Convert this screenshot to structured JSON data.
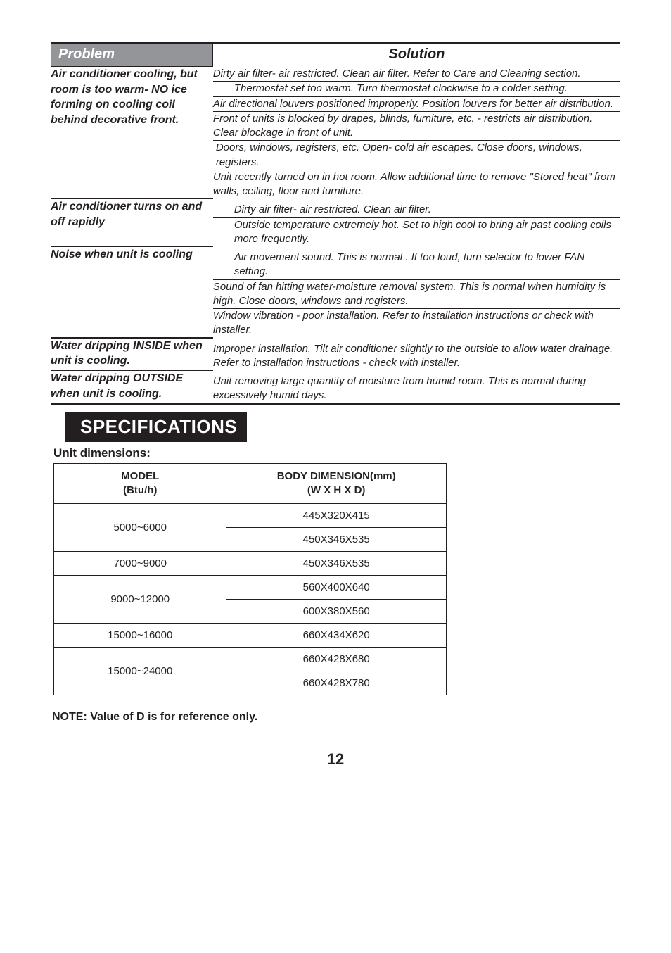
{
  "troubleshoot": {
    "headers": {
      "problem": "Problem",
      "solution": "Solution"
    },
    "groups": [
      {
        "problem": "Air conditioner cooling, but room is too warm- NO ice forming on cooling coil behind decorative front.",
        "solutions": [
          "Dirty air filter- air restricted. Clean air filter. Refer to Care and Cleaning section.",
          "Thermostat set too warm. Turn thermostat clockwise to a colder setting.",
          "Air directional louvers positioned improperly. Position louvers for better air distribution.",
          "Front of units is blocked by drapes, blinds, furniture, etc. - restricts air distribution. Clear blockage in front of unit.",
          "Doors, windows, registers, etc. Open- cold air escapes. Close doors, windows, registers.",
          "Unit recently turned on in hot room. Allow additional time to remove \"Stored heat\" from walls, ceiling, floor and furniture."
        ]
      },
      {
        "problem": "Air conditioner turns on and off rapidly",
        "solutions": [
          "Dirty air filter- air restricted. Clean air filter.",
          "Outside temperature extremely hot. Set to high cool to bring air past cooling coils more frequently."
        ]
      },
      {
        "problem": "Noise when unit is cooling",
        "solutions": [
          "Air movement sound. This is normal . If too loud, turn selector to lower FAN setting.",
          "Sound of fan hitting water-moisture removal system. This is normal when humidity is high. Close doors, windows and registers.",
          "Window vibration - poor installation. Refer to installation instructions or check with installer."
        ]
      },
      {
        "problem": "Water dripping INSIDE when unit is cooling.",
        "solutions": [
          "Improper installation. Tilt air conditioner slightly to the outside to allow water drainage. Refer to installation instructions - check with installer."
        ]
      },
      {
        "problem": "Water dripping OUTSIDE when unit is cooling.",
        "solutions": [
          "Unit removing large quantity of moisture from humid room. This is normal during excessively humid days."
        ]
      }
    ]
  },
  "spec": {
    "heading": "SPECIFICATIONS",
    "subheading": "Unit dimensions:",
    "headers": {
      "model": "MODEL\n(Btu/h)",
      "dim": "BODY DIMENSION(mm)\n(W X H X D)"
    },
    "rows": [
      {
        "model": "5000~6000",
        "dims": [
          "445X320X415",
          "450X346X535"
        ]
      },
      {
        "model": "7000~9000",
        "dims": [
          "450X346X535"
        ]
      },
      {
        "model": "9000~12000",
        "dims": [
          "560X400X640",
          "600X380X560"
        ]
      },
      {
        "model": "15000~16000",
        "dims": [
          "660X434X620"
        ]
      },
      {
        "model": "15000~24000",
        "dims": [
          "660X428X680",
          "660X428X780"
        ]
      }
    ]
  },
  "note": "NOTE: Value of D is for reference only.",
  "page_number": "12"
}
